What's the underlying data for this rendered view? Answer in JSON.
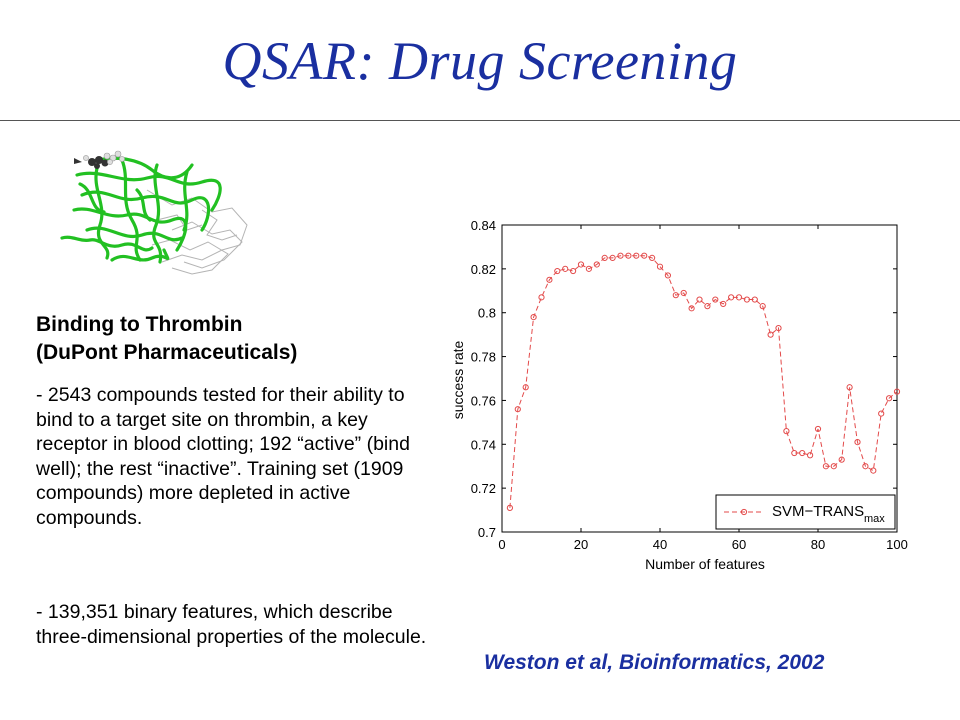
{
  "slide": {
    "title": "QSAR: Drug Screening",
    "heading": [
      "Binding to Thrombin",
      "(DuPont Pharmaceuticals)"
    ],
    "bullets": [
      "- 2543 compounds tested for their ability to bind to a target site on thrombin, a key receptor in blood clotting; 192 “active” (bind well); the rest “inactive”. Training set (1909 compounds) more depleted in active compounds.",
      "- 139,351 binary features, which describe three-dimensional properties of the molecule."
    ],
    "citation": "Weston et al, Bioinformatics, 2002",
    "molecule_image": "protein-ribbon-structure",
    "colors": {
      "title": "#1a2fa0",
      "ribbon": "#22c022",
      "series": "#e34a4a"
    }
  },
  "chart_data": {
    "type": "line",
    "xlabel": "Number of features",
    "ylabel": "success rate",
    "xlim": [
      0,
      100
    ],
    "ylim": [
      0.7,
      0.84
    ],
    "xticks": [
      "0",
      "20",
      "40",
      "60",
      "80",
      "100"
    ],
    "yticks": [
      "0.7",
      "0.72",
      "0.74",
      "0.76",
      "0.78",
      "0.8",
      "0.82",
      "0.84"
    ],
    "legend": {
      "label": "SVM−TRANS",
      "subscript": "max",
      "position": "bottom-right"
    },
    "grid": false,
    "series": [
      {
        "name": "SVM−TRANS max",
        "style": "dashed with circle markers",
        "x": [
          2,
          4,
          6,
          8,
          10,
          12,
          14,
          16,
          18,
          20,
          22,
          24,
          26,
          28,
          30,
          32,
          34,
          36,
          38,
          40,
          42,
          44,
          46,
          48,
          50,
          52,
          54,
          56,
          58,
          60,
          62,
          64,
          66,
          68,
          70,
          72,
          74,
          76,
          78,
          80,
          82,
          84,
          86,
          88,
          90,
          92,
          94,
          96,
          98,
          100
        ],
        "y": [
          0.711,
          0.756,
          0.766,
          0.798,
          0.807,
          0.815,
          0.819,
          0.82,
          0.819,
          0.822,
          0.82,
          0.822,
          0.825,
          0.825,
          0.826,
          0.826,
          0.826,
          0.826,
          0.825,
          0.821,
          0.817,
          0.808,
          0.809,
          0.802,
          0.806,
          0.803,
          0.806,
          0.804,
          0.807,
          0.807,
          0.806,
          0.806,
          0.803,
          0.79,
          0.793,
          0.746,
          0.736,
          0.736,
          0.735,
          0.747,
          0.73,
          0.73,
          0.733,
          0.766,
          0.741,
          0.73,
          0.728,
          0.754,
          0.761,
          0.764
        ]
      }
    ]
  }
}
